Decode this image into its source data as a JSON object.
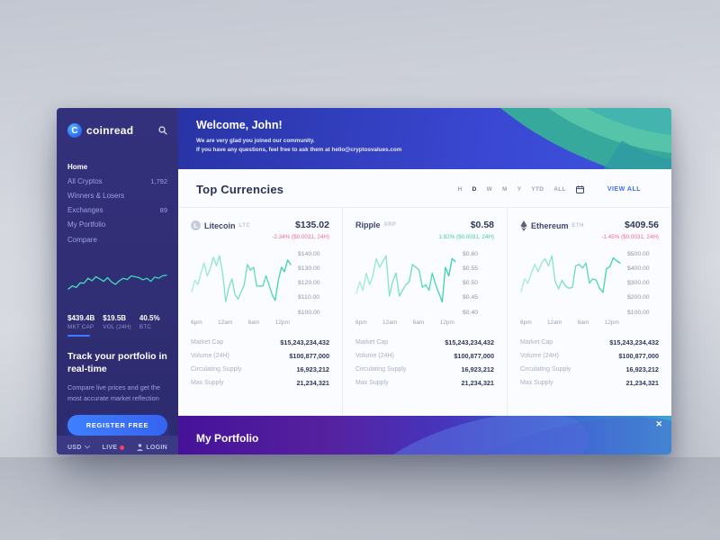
{
  "brand": {
    "name": "coinread"
  },
  "sidebar": {
    "menu": [
      {
        "label": "Home",
        "badge": ""
      },
      {
        "label": "All Cryptos",
        "badge": "1,792"
      },
      {
        "label": "Winners & Losers",
        "badge": ""
      },
      {
        "label": "Exchanges",
        "badge": "89"
      },
      {
        "label": "My Portfolio",
        "badge": ""
      },
      {
        "label": "Compare",
        "badge": ""
      }
    ],
    "stats": [
      {
        "value": "$439.4B",
        "label": "MKT CAP"
      },
      {
        "value": "$19.5B",
        "label": "VOL (24H)"
      },
      {
        "value": "40.5%",
        "label": "BTC"
      }
    ],
    "promo_title": "Track your portfolio in real-time",
    "promo_text": "Compare live prices and get the most accurate market reflection",
    "register_button": "REGISTER FREE",
    "footer": {
      "currency": "USD",
      "live_label": "LIVE",
      "login_label": "LOGIN"
    }
  },
  "banner": {
    "title": "Welcome, John!",
    "line1": "We are very glad you joined our community.",
    "line2": "If you have any questions, feel free to ask them at hello@cryptosvalues.com"
  },
  "top_currencies": {
    "title": "Top Currencies",
    "filters": [
      "H",
      "D",
      "W",
      "M",
      "Y",
      "YTD",
      "ALL"
    ],
    "active_filter": "D",
    "view_all_label": "VIEW ALL"
  },
  "cards": [
    {
      "name": "Litecoin",
      "ticker": "LTC",
      "price": "$135.02",
      "change": "-2.34% ($0.0031, 24H)",
      "direction": "down",
      "stats": [
        {
          "label": "Market Cap",
          "value": "$15,243,234,432"
        },
        {
          "label": "Volume (24H)",
          "value": "$100,877,000"
        },
        {
          "label": "Circulating Supply",
          "value": "16,923,212"
        },
        {
          "label": "Max Supply",
          "value": "21,234,321"
        }
      ]
    },
    {
      "name": "Ripple",
      "ticker": "XRP",
      "price": "$0.58",
      "change": "1.92% ($0.0031, 24H)",
      "direction": "up",
      "stats": [
        {
          "label": "Market Cap",
          "value": "$15,243,234,432"
        },
        {
          "label": "Volume (24H)",
          "value": "$100,877,000"
        },
        {
          "label": "Circulating Supply",
          "value": "16,923,212"
        },
        {
          "label": "Max Supply",
          "value": "21,234,321"
        }
      ]
    },
    {
      "name": "Ethereum",
      "ticker": "ETH",
      "price": "$409.56",
      "change": "-1.45% ($0.0031, 24H)",
      "direction": "down",
      "stats": [
        {
          "label": "Market Cap",
          "value": "$15,243,234,432"
        },
        {
          "label": "Volume (24H)",
          "value": "$100,877,000"
        },
        {
          "label": "Circulating Supply",
          "value": "16,923,212"
        },
        {
          "label": "Max Supply",
          "value": "21,234,321"
        }
      ]
    }
  ],
  "portfolio_bar": {
    "title": "My Portfolio",
    "close_icon": "✕"
  },
  "colors": {
    "accent_blue": "#3f7bff",
    "negative": "#f2688c",
    "positive": "#3ecbaa",
    "chart_teal": "#2fd0ae",
    "sidebar_bg": "#312e74",
    "banner_blue": "#3a47d2"
  },
  "chart_data": [
    {
      "type": "line",
      "title": "Global market sparkline",
      "ylim": [
        0,
        100
      ],
      "values": [
        35,
        45,
        40,
        55,
        54,
        70,
        62,
        75,
        68,
        60,
        72,
        58,
        50,
        62,
        70,
        66,
        78,
        75,
        72,
        65,
        70,
        60,
        74,
        70,
        78,
        80
      ],
      "line_start": "#49e0c0",
      "line_end": "#35d6b5"
    },
    {
      "type": "line",
      "title": "Litecoin 24h price",
      "xticks": [
        "6pm",
        "12am",
        "6am",
        "12pm"
      ],
      "yticks": [
        "$140.00",
        "$130.00",
        "$120.00",
        "$110.00",
        "$100.00"
      ],
      "ylim": [
        100,
        140
      ],
      "values": [
        113,
        121,
        118,
        126,
        133,
        124,
        129,
        137,
        131,
        138,
        126,
        106,
        116,
        122,
        111,
        108,
        113,
        118,
        132,
        128,
        130,
        117,
        117,
        117,
        124,
        118,
        111,
        107,
        121,
        130,
        127,
        135,
        132
      ],
      "line_start": "#a9edd6",
      "line_end": "#2fd0ae"
    },
    {
      "type": "line",
      "title": "Ripple 24h price",
      "xticks": [
        "6pm",
        "12am",
        "6am",
        "12pm"
      ],
      "yticks": [
        "$0.60",
        "$0.55",
        "$0.50",
        "$0.45",
        "$0.40"
      ],
      "ylim": [
        0.4,
        0.6
      ],
      "values": [
        0.46,
        0.5,
        0.47,
        0.53,
        0.49,
        0.52,
        0.58,
        0.55,
        0.57,
        0.59,
        0.45,
        0.5,
        0.53,
        0.45,
        0.47,
        0.49,
        0.5,
        0.56,
        0.55,
        0.54,
        0.48,
        0.49,
        0.47,
        0.53,
        0.49,
        0.46,
        0.43,
        0.55,
        0.52,
        0.58,
        0.57
      ],
      "line_start": "#a9edd6",
      "line_end": "#2fd0ae"
    },
    {
      "type": "line",
      "title": "Ethereum 24h price",
      "xticks": [
        "6pm",
        "12am",
        "6am",
        "12pm"
      ],
      "yticks": [
        "$500.00",
        "$400.00",
        "$300.00",
        "$200.00",
        "$100.00"
      ],
      "ylim": [
        100,
        500
      ],
      "values": [
        230,
        320,
        290,
        360,
        420,
        370,
        430,
        460,
        410,
        480,
        300,
        250,
        310,
        270,
        255,
        260,
        410,
        420,
        395,
        430,
        290,
        320,
        310,
        255,
        225,
        390,
        405,
        465,
        445,
        430
      ],
      "line_start": "#a9edd6",
      "line_end": "#2fd0ae"
    }
  ]
}
